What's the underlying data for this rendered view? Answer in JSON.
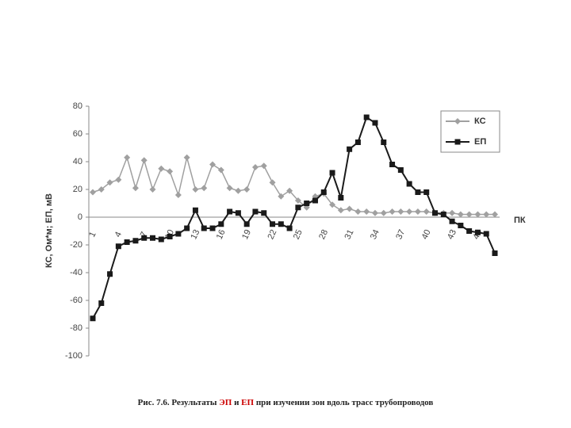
{
  "chart_data": {
    "type": "line",
    "y_label": "КС, Ом*м; ЕП, мВ",
    "x_label": "ПК",
    "categories": [
      "1",
      null,
      null,
      "4",
      null,
      null,
      "7",
      null,
      null,
      "10",
      null,
      null,
      "13",
      null,
      null,
      "16",
      null,
      null,
      "19",
      null,
      null,
      "22",
      null,
      null,
      "25",
      null,
      null,
      "28",
      null,
      null,
      "31",
      null,
      null,
      "34",
      null,
      null,
      "37",
      null,
      null,
      "40",
      null,
      null,
      "43",
      null,
      null,
      "46",
      null,
      null
    ],
    "series": [
      {
        "name": "КС",
        "color": "#a0a0a0",
        "marker": "diamond",
        "values": [
          18,
          20,
          25,
          27,
          43,
          21,
          41,
          20,
          35,
          33,
          16,
          43,
          20,
          21,
          38,
          34,
          21,
          19,
          20,
          36,
          37,
          25,
          15,
          19,
          12,
          7,
          15,
          17,
          9,
          5,
          6,
          4,
          4,
          3,
          3,
          4,
          4,
          4,
          4,
          4,
          3,
          3,
          3,
          2,
          2,
          2,
          2,
          2
        ]
      },
      {
        "name": "ЕП",
        "color": "#1a1a1a",
        "marker": "square",
        "values": [
          -73,
          -62,
          -41,
          -21,
          -18,
          -17,
          -15,
          -15,
          -16,
          -14,
          -12,
          -8,
          5,
          -8,
          -8,
          -5,
          4,
          3,
          -5,
          4,
          3,
          -5,
          -5,
          -8,
          7,
          10,
          12,
          18,
          32,
          14,
          49,
          54,
          72,
          68,
          54,
          38,
          34,
          24,
          18,
          18,
          3,
          2,
          -3,
          -6,
          -10,
          -11,
          -12,
          -26
        ]
      }
    ],
    "ylim": [
      -100,
      80
    ],
    "yticks": [
      -100,
      -80,
      -60,
      -40,
      -20,
      0,
      20,
      40,
      60,
      80
    ],
    "legend": "top-right",
    "caption": {
      "prefix": "Рис. 7.6. Результаты ",
      "term1": "ЭП",
      "mid": " и ",
      "term2": "ЕП",
      "suffix": " при изучении зон вдоль трасс трубопроводов",
      "term_color": "#cc0000"
    }
  }
}
